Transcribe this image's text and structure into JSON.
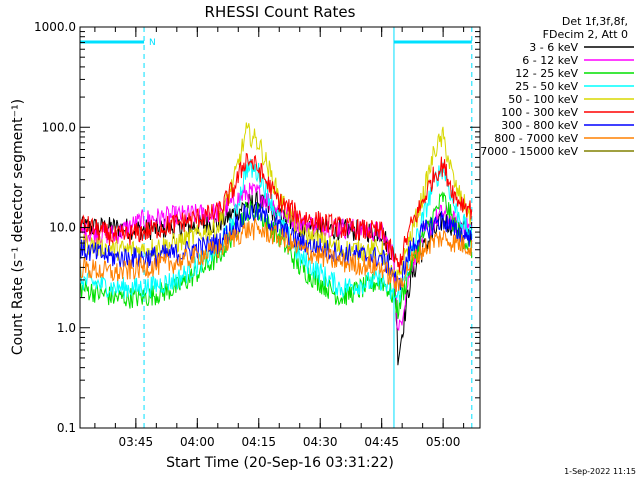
{
  "chart_data": {
    "type": "line",
    "title": "RHESSI Count Rates",
    "xlabel": "Start Time (20-Sep-16 03:31:22)",
    "ylabel": "Count Rate (s⁻¹ detector segment⁻¹)",
    "y_scale": "log",
    "ylim": [
      0.1,
      1000.0
    ],
    "xlim": [
      "03:31:22",
      "05:09:00"
    ],
    "y_ticks": [
      {
        "value": 0.1,
        "label": "0.1"
      },
      {
        "value": 1.0,
        "label": "1.0"
      },
      {
        "value": 10.0,
        "label": "10.0"
      },
      {
        "value": 100.0,
        "label": "100.0"
      },
      {
        "value": 1000.0,
        "label": "1000.0"
      }
    ],
    "x_ticks": [
      {
        "value": "03:45",
        "label": "03:45"
      },
      {
        "value": "04:00",
        "label": "04:00"
      },
      {
        "value": "04:15",
        "label": "04:15"
      },
      {
        "value": "04:30",
        "label": "04:30"
      },
      {
        "value": "04:45",
        "label": "04:45"
      },
      {
        "value": "05:00",
        "label": "05:00"
      }
    ],
    "legend_header": [
      "Det 1f,3f,8f,",
      "FDecim 2, Att 0"
    ],
    "legend_position": "right",
    "night_intervals": [
      {
        "start": "03:31:22",
        "end": "03:47:00",
        "label": "N"
      },
      {
        "start": "04:48:00",
        "end": "05:07:00",
        "label": ""
      }
    ],
    "series": [
      {
        "name": "3 - 6 keV",
        "color": "#000000",
        "x": [
          "03:31:22",
          "03:40",
          "03:47",
          "03:55",
          "04:05",
          "04:09",
          "04:12",
          "04:15",
          "04:20",
          "04:25",
          "04:35",
          "04:45",
          "04:48",
          "04:49",
          "04:52",
          "04:55",
          "04:58",
          "05:00",
          "05:03",
          "05:07"
        ],
        "y": [
          10,
          10,
          9.5,
          10,
          11,
          14,
          17,
          18,
          13,
          10,
          9.5,
          9,
          5,
          0.5,
          3,
          6,
          9,
          12,
          10,
          9
        ]
      },
      {
        "name": "6 - 12 keV",
        "color": "#ff00ff",
        "x": [
          "03:31:22",
          "03:40",
          "03:47",
          "03:55",
          "04:05",
          "04:09",
          "04:12",
          "04:15",
          "04:20",
          "04:25",
          "04:35",
          "04:45",
          "04:48",
          "04:49",
          "04:52",
          "04:55",
          "04:58",
          "05:00",
          "05:03",
          "05:07"
        ],
        "y": [
          9,
          8.5,
          12,
          13,
          14,
          18,
          22,
          22,
          15,
          11,
          10,
          9,
          5,
          0.8,
          4,
          8,
          12,
          14,
          11,
          10
        ]
      },
      {
        "name": "12 - 25 keV",
        "color": "#00e000",
        "x": [
          "03:31:22",
          "03:40",
          "03:47",
          "03:55",
          "04:05",
          "04:09",
          "04:12",
          "04:15",
          "04:20",
          "04:25",
          "04:35",
          "04:45",
          "04:48",
          "04:49",
          "04:52",
          "04:55",
          "04:58",
          "05:00",
          "05:03",
          "05:07"
        ],
        "y": [
          2.5,
          2,
          2,
          2.5,
          5,
          9,
          15,
          14,
          8,
          4,
          2,
          3,
          2,
          1.5,
          4,
          8,
          14,
          20,
          10,
          6
        ]
      },
      {
        "name": "25 - 50 keV",
        "color": "#00ffff",
        "x": [
          "03:31:22",
          "03:40",
          "03:47",
          "03:55",
          "04:05",
          "04:09",
          "04:12",
          "04:15",
          "04:20",
          "04:25",
          "04:35",
          "04:45",
          "04:48",
          "04:49",
          "04:52",
          "04:55",
          "04:58",
          "05:00",
          "05:03",
          "05:07"
        ],
        "y": [
          3,
          2.5,
          2.5,
          3,
          6,
          12,
          40,
          35,
          12,
          5,
          2.5,
          3,
          2,
          2,
          5,
          12,
          30,
          40,
          15,
          8
        ]
      },
      {
        "name": "50 - 100 keV",
        "color": "#d8d800",
        "x": [
          "03:31:22",
          "03:40",
          "03:47",
          "03:55",
          "04:05",
          "04:09",
          "04:12",
          "04:15",
          "04:20",
          "04:25",
          "04:35",
          "04:45",
          "04:48",
          "04:49",
          "04:52",
          "04:55",
          "04:58",
          "05:00",
          "05:03",
          "05:07"
        ],
        "y": [
          7,
          6,
          6,
          7,
          10,
          30,
          90,
          70,
          20,
          9,
          6,
          6,
          3,
          3,
          8,
          20,
          60,
          80,
          25,
          12
        ]
      },
      {
        "name": "100 - 300 keV",
        "color": "#ff0000",
        "x": [
          "03:31:22",
          "03:40",
          "03:47",
          "03:55",
          "04:05",
          "04:09",
          "04:12",
          "04:15",
          "04:20",
          "04:25",
          "04:35",
          "04:45",
          "04:48",
          "04:49",
          "04:52",
          "04:55",
          "04:58",
          "05:00",
          "05:03",
          "05:07"
        ],
        "y": [
          11,
          8,
          9,
          11,
          14,
          25,
          50,
          38,
          18,
          13,
          10,
          9,
          5,
          4,
          10,
          18,
          35,
          42,
          20,
          15
        ]
      },
      {
        "name": "300 - 800 keV",
        "color": "#0000ff",
        "x": [
          "03:31:22",
          "03:40",
          "03:47",
          "03:55",
          "04:05",
          "04:09",
          "04:12",
          "04:15",
          "04:20",
          "04:25",
          "04:35",
          "04:45",
          "04:48",
          "04:49",
          "04:52",
          "04:55",
          "04:58",
          "05:00",
          "05:03",
          "05:07"
        ],
        "y": [
          6,
          5,
          5,
          5.5,
          7,
          10,
          14,
          14,
          10,
          7,
          5.5,
          5,
          3.5,
          2.5,
          6,
          9,
          11,
          12,
          9,
          8
        ]
      },
      {
        "name": "800 - 7000 keV",
        "color": "#ff8000",
        "x": [
          "03:31:22",
          "03:40",
          "03:47",
          "03:55",
          "04:05",
          "04:09",
          "04:12",
          "04:15",
          "04:20",
          "04:25",
          "04:35",
          "04:45",
          "04:48",
          "04:49",
          "04:52",
          "04:55",
          "04:58",
          "05:00",
          "05:03",
          "05:07"
        ],
        "y": [
          4,
          3.5,
          4,
          4.5,
          6,
          8,
          9.5,
          9.5,
          8,
          6,
          4.5,
          4,
          3,
          2.5,
          4.5,
          6,
          7.5,
          8,
          7,
          6.5
        ]
      },
      {
        "name": "7000 - 15000 keV",
        "color": "#808000",
        "x": [],
        "y": []
      }
    ]
  },
  "footer": {
    "timestamp": "1-Sep-2022 11:15"
  }
}
